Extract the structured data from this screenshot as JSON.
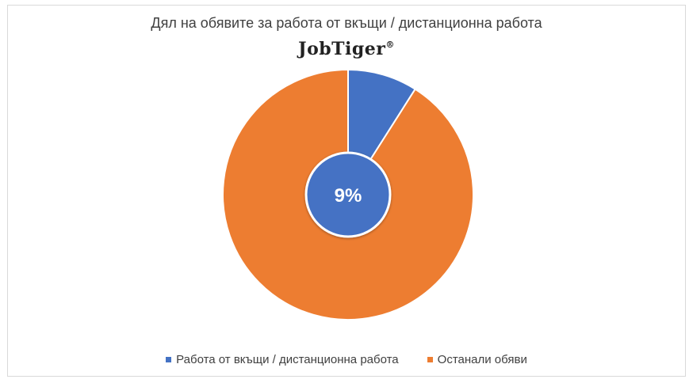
{
  "chart_data": {
    "type": "pie",
    "title": "Дял на обявите за работа от вкъщи / дистанционна работа",
    "brand": "JobTiger",
    "brand_mark": "®",
    "categories": [
      "Работа от вкъщи / дистанционна работа",
      "Останали обяви"
    ],
    "values": [
      9,
      91
    ],
    "data_labels": [
      "9%",
      ""
    ],
    "colors": [
      "#4472c4",
      "#ed7d31"
    ],
    "legend_position": "bottom"
  }
}
